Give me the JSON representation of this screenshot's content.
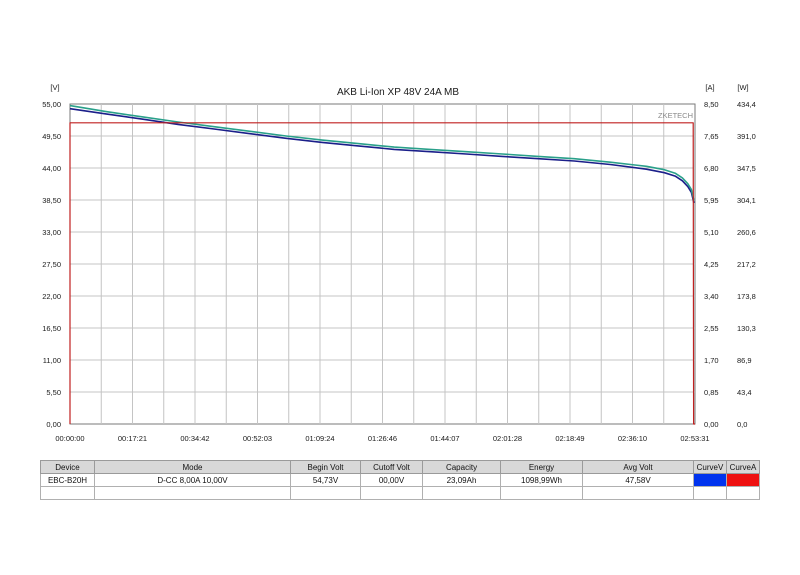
{
  "chart_data": {
    "type": "line",
    "title": "AKB Li-Ion XP 48V 24A MB",
    "watermark": "ZKETECH",
    "unit_left": "[V]",
    "unit_right_current": "[A]",
    "unit_right_power": "[W]",
    "x_ticks": [
      "00:00:00",
      "00:17:21",
      "00:34:42",
      "00:52:03",
      "01:09:24",
      "01:26:46",
      "01:44:07",
      "02:01:28",
      "02:18:49",
      "02:36:10",
      "02:53:31"
    ],
    "y_ticks_voltage": [
      "0,00",
      "5,50",
      "11,00",
      "16,50",
      "22,00",
      "27,50",
      "33,00",
      "38,50",
      "44,00",
      "49,50",
      "55,00"
    ],
    "y_ticks_current": [
      "0,00",
      "0,85",
      "1,70",
      "2,55",
      "3,40",
      "4,25",
      "5,10",
      "5,95",
      "6,80",
      "7,65",
      "8,50"
    ],
    "y_ticks_power": [
      "0,0",
      "43,4",
      "86,9",
      "130,3",
      "173,8",
      "217,2",
      "260,6",
      "304,1",
      "347,5",
      "391,0",
      "434,4"
    ],
    "xlim_minutes": [
      0,
      173.5
    ],
    "ylim_voltage": [
      0,
      55
    ],
    "ylim_current": [
      0,
      8.5
    ],
    "ylim_power": [
      0,
      434.4
    ],
    "grid": true,
    "series": [
      {
        "name": "CurveV",
        "axis": "voltage",
        "color": "#1b1f8a",
        "x": [
          0,
          10,
          20,
          30,
          40,
          50,
          60,
          70,
          80,
          90,
          100,
          110,
          120,
          130,
          140,
          150,
          160,
          165,
          168,
          170,
          171.5,
          172.5,
          173.2
        ],
        "y": [
          54.2,
          53.3,
          52.4,
          51.5,
          50.7,
          49.9,
          49.1,
          48.4,
          47.8,
          47.2,
          46.8,
          46.4,
          46.0,
          45.6,
          45.2,
          44.6,
          43.8,
          43.2,
          42.6,
          41.8,
          40.8,
          39.8,
          38.0
        ]
      },
      {
        "name": "CurveV-trace",
        "axis": "voltage",
        "color": "#2aa08a",
        "x": [
          0,
          10,
          20,
          30,
          40,
          50,
          60,
          70,
          80,
          90,
          100,
          110,
          120,
          130,
          140,
          150,
          160,
          165,
          168,
          170,
          171.5,
          172.5,
          173.2
        ],
        "y": [
          54.73,
          53.7,
          52.8,
          51.9,
          51.1,
          50.3,
          49.5,
          48.8,
          48.2,
          47.6,
          47.2,
          46.8,
          46.4,
          46.0,
          45.6,
          45.0,
          44.3,
          43.7,
          43.1,
          42.3,
          41.3,
          40.3,
          38.4
        ]
      },
      {
        "name": "CurveA",
        "axis": "current",
        "color": "#c02020",
        "x": [
          0,
          0.01,
          173.0,
          173.1,
          173.5
        ],
        "y": [
          0,
          8.0,
          8.0,
          0,
          0
        ]
      }
    ]
  },
  "summary": {
    "headers": [
      "Device",
      "Mode",
      "Begin Volt",
      "Cutoff Volt",
      "Capacity",
      "Energy",
      "Avg Volt",
      "CurveV",
      "CurveA"
    ],
    "row": {
      "device": "EBC-B20H",
      "mode": "D-CC  8,00A  10,00V",
      "begin_volt": "54,73V",
      "cutoff_volt": "00,00V",
      "capacity": "23,09Ah",
      "energy": "1098,99Wh",
      "avg_volt": "47,58V"
    },
    "curve_v_color": "#0033ee",
    "curve_a_color": "#ee1111"
  }
}
